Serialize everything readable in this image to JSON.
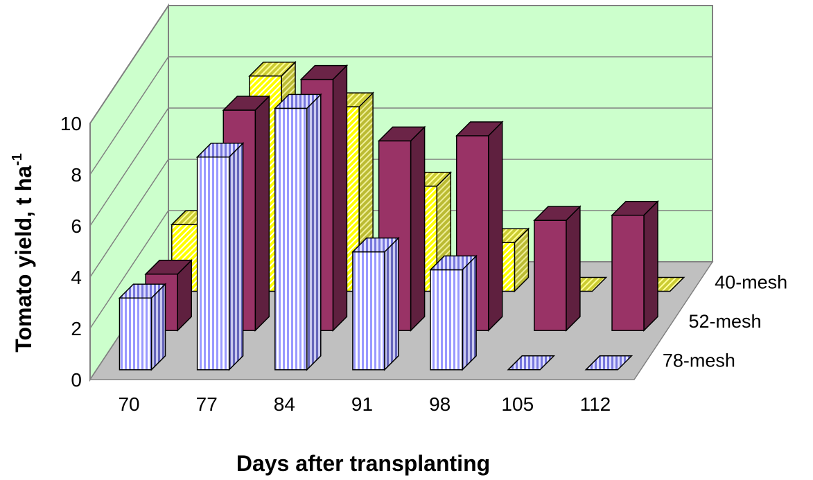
{
  "chart_data": {
    "type": "bar",
    "style": "3d-column",
    "categories": [
      "70",
      "77",
      "84",
      "91",
      "98",
      "105",
      "112"
    ],
    "series": [
      {
        "name": "78-mesh",
        "values": [
          2.8,
          8.3,
          10.2,
          4.6,
          3.9,
          0,
          0
        ],
        "pattern": "vertical-stripes",
        "color": "#9999ff"
      },
      {
        "name": "52-mesh",
        "values": [
          2.2,
          8.6,
          9.8,
          7.4,
          7.6,
          4.3,
          4.5
        ],
        "pattern": "solid",
        "color": "#993366"
      },
      {
        "name": "40-mesh",
        "values": [
          2.6,
          8.4,
          7.2,
          4.1,
          1.9,
          0,
          0
        ],
        "pattern": "diagonal-hatch",
        "color": "#ffff00"
      }
    ],
    "ylabel": "Tomato yield, t ha",
    "ylabel_superscript": "-1",
    "xlabel": "Days after transplanting",
    "y_ticks": [
      "0",
      "2",
      "4",
      "6",
      "8",
      "10"
    ],
    "ylim": [
      0,
      10
    ],
    "grid": true,
    "floor_color": "#c0c0c0",
    "wall_color": "#ccffcc"
  }
}
